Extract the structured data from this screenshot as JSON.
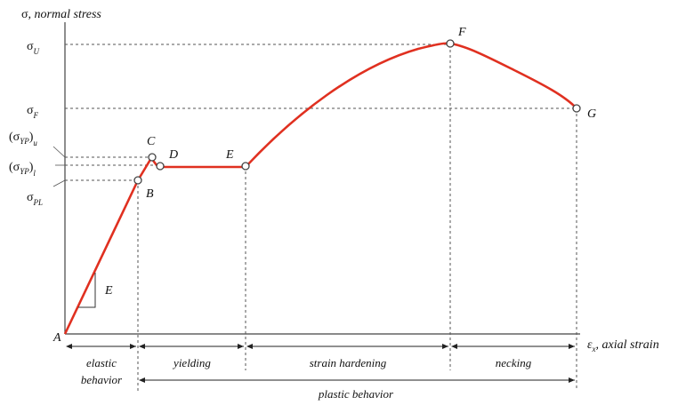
{
  "axes": {
    "y_symbol": "σ",
    "y_label": ", normal stress",
    "x_symbol": "ε",
    "x_sub": "x",
    "x_label": ", axial strain"
  },
  "stress_levels": {
    "ultimate": {
      "symbol": "σ",
      "sub": "U"
    },
    "fracture": {
      "symbol": "σ",
      "sub": "F"
    },
    "yield_upper": {
      "symbol": "(σ",
      "sub": "YP",
      "close": ")",
      "outer_sub": "u"
    },
    "yield_lower": {
      "symbol": "(σ",
      "sub": "YP",
      "close": ")",
      "outer_sub": "l"
    },
    "proportional": {
      "symbol": "σ",
      "sub": "PL"
    }
  },
  "points": {
    "A": "A",
    "B": "B",
    "C": "C",
    "D": "D",
    "E": "E",
    "F": "F",
    "G": "G"
  },
  "slope_label": "E",
  "regions": {
    "elastic_line1": "elastic",
    "elastic_line2": "behavior",
    "yielding": "yielding",
    "strain_hardening": "strain hardening",
    "necking": "necking",
    "plastic": "plastic behavior"
  },
  "colors": {
    "curve": "#e03020",
    "axis": "#444444",
    "point_fill": "#ffffff"
  }
}
